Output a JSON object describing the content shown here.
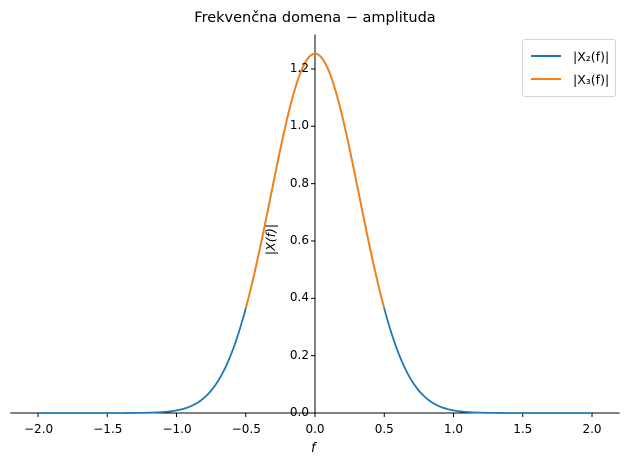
{
  "chart_data": {
    "type": "line",
    "title": "Frekvenčna domena − amplituda",
    "xlabel": "f",
    "ylabel": "|X(f)|",
    "xlim": [
      -2.2,
      2.2
    ],
    "ylim": [
      0.0,
      1.32
    ],
    "xticks": [
      "−2.0",
      "−1.5",
      "−1.0",
      "−0.5",
      "0.0",
      "0.5",
      "1.0",
      "1.5",
      "2.0"
    ],
    "yticks": [
      "0.0",
      "0.2",
      "0.4",
      "0.6",
      "0.8",
      "1.0",
      "1.2"
    ],
    "grid": false,
    "legend_position": "upper right",
    "series": [
      {
        "name": "|X2(f)|",
        "color": "#1f77b4",
        "x_range": [
          -2.0,
          2.0
        ],
        "x": [
          -2.0,
          -1.5,
          -1.25,
          -1.0,
          -0.75,
          -0.5,
          -0.25,
          0.0,
          0.25,
          0.5,
          0.75,
          1.0,
          1.25,
          1.5,
          2.0
        ],
        "values": [
          0.0,
          0.0,
          0.0,
          0.009,
          0.07,
          0.36,
          0.92,
          1.253,
          0.92,
          0.36,
          0.07,
          0.009,
          0.0,
          0.0,
          0.0
        ]
      },
      {
        "name": "|X3(f)|",
        "color": "#ff7f0e",
        "x_range": [
          -0.5,
          0.5
        ],
        "x": [
          -0.5,
          -0.25,
          0.0,
          0.25,
          0.5
        ],
        "values": [
          0.36,
          0.92,
          1.253,
          0.92,
          0.36
        ]
      }
    ]
  },
  "legend": {
    "items": [
      {
        "label": "|X₂(f)|",
        "color": "#1f77b4"
      },
      {
        "label": "|X₃(f)|",
        "color": "#ff7f0e"
      }
    ]
  }
}
